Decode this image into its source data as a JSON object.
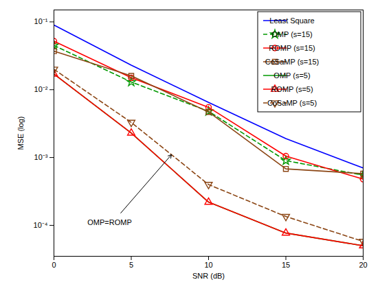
{
  "chart_data": {
    "type": "line",
    "x_label": "SNR (dB)",
    "y_label": "MSE (log)",
    "log": "y",
    "grid": false,
    "legend": "top-right",
    "x": [
      0,
      5,
      10,
      15,
      20
    ],
    "xlim": [
      0,
      20
    ],
    "xticks": [
      0,
      5,
      10,
      15,
      20
    ],
    "ylim": [
      3.5e-05,
      0.15
    ],
    "yticks": [
      {
        "value": 0.0001,
        "label": "10⁻⁴"
      },
      {
        "value": 0.001,
        "label": "10⁻³"
      },
      {
        "value": 0.01,
        "label": "10⁻²"
      },
      {
        "value": 0.1,
        "label": "10⁻¹"
      }
    ],
    "series": [
      {
        "name": "Least Square",
        "color": "#0000ff",
        "line_style": "solid",
        "marker": "none",
        "values": [
          0.09,
          0.023,
          0.0065,
          0.0019,
          0.0007
        ]
      },
      {
        "name": "OMP (s=15)",
        "color": "#009900",
        "line_style": "dashed",
        "marker": "star",
        "values": [
          0.045,
          0.013,
          0.0048,
          0.0009,
          0.00055
        ]
      },
      {
        "name": "ROMP (s=15)",
        "color": "#ff0000",
        "line_style": "solid",
        "marker": "circle",
        "values": [
          0.052,
          0.015,
          0.0055,
          0.00105,
          0.00048
        ]
      },
      {
        "name": "CoSaMP (s=15)",
        "color": "#8b4513",
        "line_style": "solid",
        "marker": "square",
        "values": [
          0.037,
          0.016,
          0.0047,
          0.00068,
          0.00058
        ]
      },
      {
        "name": "OMP (s=5)",
        "color": "#009900",
        "line_style": "solid",
        "marker": "none",
        "values": [
          0.017,
          0.0023,
          0.00022,
          7.7e-05,
          5e-05
        ]
      },
      {
        "name": "ROMP (s=5)",
        "color": "#ff0000",
        "line_style": "solid",
        "marker": "triangle",
        "values": [
          0.017,
          0.0023,
          0.00022,
          7.7e-05,
          5e-05
        ]
      },
      {
        "name": "CoSaMP (s=5)",
        "color": "#8b4513",
        "line_style": "dashed",
        "marker": "triangle-down",
        "values": [
          0.02,
          0.0033,
          0.0004,
          0.000135,
          5.8e-05
        ]
      }
    ],
    "annotations": [
      {
        "text": "OMP=ROMP",
        "x": 3.6,
        "y": 0.00011,
        "arrow_to": [
          7.6,
          0.0011
        ]
      }
    ]
  }
}
